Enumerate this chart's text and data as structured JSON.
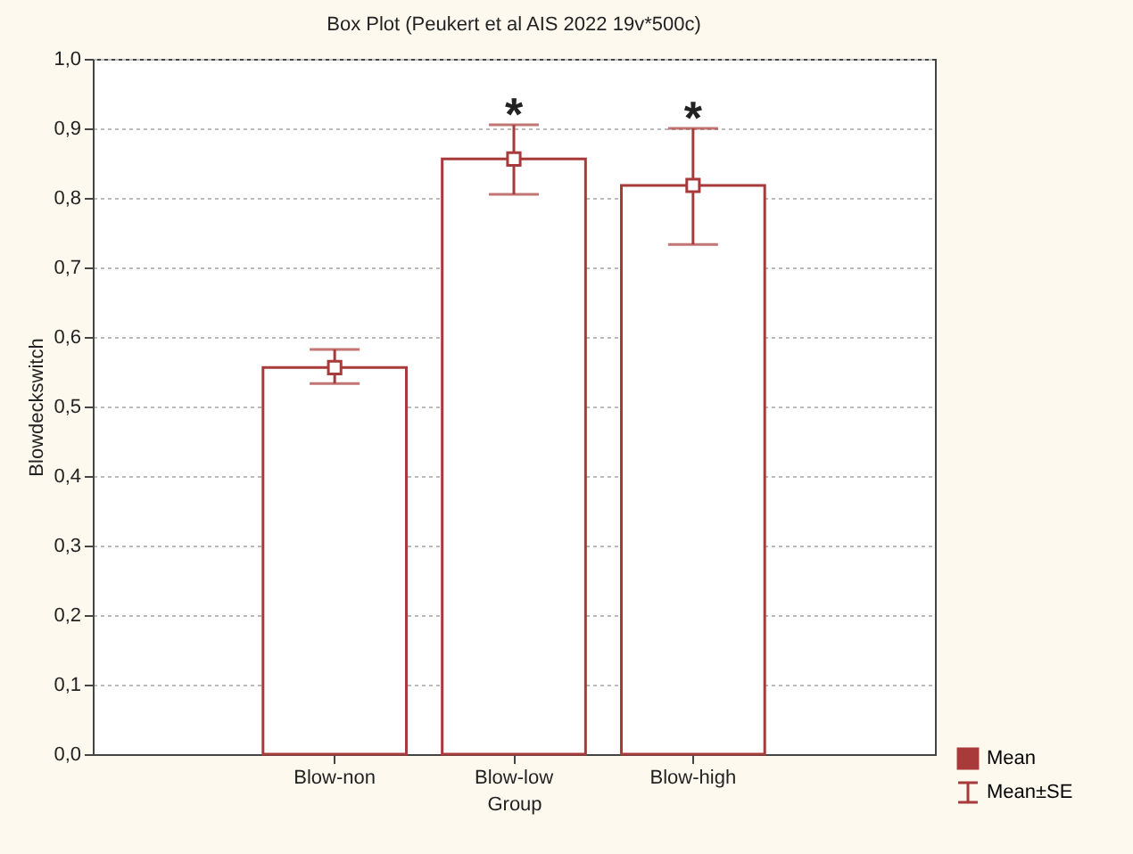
{
  "chart_data": {
    "type": "bar",
    "title": "Box Plot (Peukert et al AIS 2022 19v*500c)",
    "xlabel": "Group",
    "ylabel": "Blowdeckswitch",
    "categories": [
      "Blow-non",
      "Blow-low",
      "Blow-high"
    ],
    "series": [
      {
        "color": "#a83a3a",
        "values": [
          0.556,
          0.856,
          0.818
        ]
      },
      {
        "type": "scatter",
        "name": "Mean",
        "color": "#a83a3a",
        "x": [
          "Blow-non",
          "Blow-low",
          "Blow-high"
        ],
        "values": [
          0.556,
          0.856,
          0.818
        ],
        "errors": [
          [
            0.533,
            0.582
          ],
          [
            0.805,
            0.905
          ],
          [
            0.733,
            0.9
          ]
        ]
      }
    ],
    "ylim": [
      0,
      1
    ],
    "yticks": [
      {
        "value": 0,
        "label": "0,0"
      },
      {
        "value": 0.1,
        "label": "0,1"
      },
      {
        "value": 0.2,
        "label": "0,2"
      },
      {
        "value": 0.3,
        "label": "0,3"
      },
      {
        "value": 0.4,
        "label": "0,4"
      },
      {
        "value": 0.5,
        "label": "0,5"
      },
      {
        "value": 0.6,
        "label": "0,6"
      },
      {
        "value": 0.7,
        "label": "0,7"
      },
      {
        "value": 0.8,
        "label": "0,8"
      },
      {
        "value": 0.9,
        "label": "0,9"
      },
      {
        "value": 1,
        "label": "1,0"
      }
    ],
    "grid": "y",
    "marker": "square",
    "legend": "bottom right",
    "annotations": [
      "Mean±SE",
      "*",
      "*"
    ]
  }
}
